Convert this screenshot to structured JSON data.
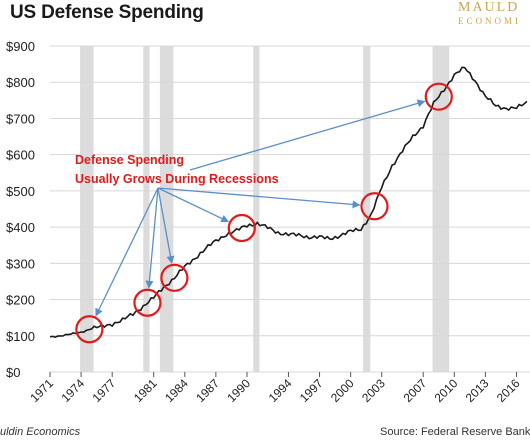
{
  "header": {
    "title": "US Defense Spending",
    "brand_line1": "MAULD",
    "brand_line2": "ECONOMI"
  },
  "footer": {
    "source_left": "uldin Economics",
    "source_right": "Source: Federal Reserve Bank of St"
  },
  "colors": {
    "line": "#1a1a1a",
    "recession": "#dcdcdc",
    "annotation": "#e21a1a",
    "arrow": "#5b8fc9",
    "grid": "#d8d8d8",
    "brand": "#c9a74d"
  },
  "chart_data": {
    "type": "line",
    "title": "US Defense Spending",
    "xlabel": "",
    "ylabel": "",
    "ylim": [
      0,
      900
    ],
    "xlim": [
      1971,
      2017.3
    ],
    "grid": true,
    "x_tick_labels": [
      "1971",
      "1974",
      "1977",
      "1981",
      "1984",
      "1987",
      "1990",
      "1994",
      "1997",
      "2000",
      "2003",
      "2007",
      "2010",
      "2013",
      "2016"
    ],
    "x_tick_values": [
      1971,
      1974,
      1977,
      1981,
      1984,
      1987,
      1990,
      1994,
      1997,
      2000,
      2003,
      2007,
      2010,
      2013,
      2016
    ],
    "y_tick_labels": [
      "$0",
      "$100",
      "$200",
      "$300",
      "$400",
      "$500",
      "$600",
      "$700",
      "$800",
      "$900"
    ],
    "y_tick_values": [
      0,
      100,
      200,
      300,
      400,
      500,
      600,
      700,
      800,
      900
    ],
    "recessions": [
      [
        1973.9,
        1975.2
      ],
      [
        1980.0,
        1980.6
      ],
      [
        1981.6,
        1982.9
      ],
      [
        1990.6,
        1991.2
      ],
      [
        2001.2,
        2001.9
      ],
      [
        2007.9,
        2009.5
      ]
    ],
    "series": [
      {
        "x": [
          1971,
          1972,
          1973,
          1974,
          1975,
          1976,
          1977,
          1978,
          1979,
          1980,
          1981,
          1982,
          1983,
          1984,
          1985,
          1986,
          1987,
          1988,
          1989,
          1990,
          1991,
          1992,
          1993,
          1994,
          1995,
          1996,
          1997,
          1998,
          1999,
          2000,
          2001,
          2002,
          2003,
          2004,
          2005,
          2006,
          2007,
          2008,
          2009,
          2010,
          2011,
          2012,
          2013,
          2014,
          2015,
          2016,
          2017
        ],
        "values": [
          97,
          100,
          104,
          110,
          120,
          125,
          133,
          143,
          160,
          182,
          205,
          235,
          260,
          290,
          315,
          340,
          362,
          380,
          390,
          405,
          410,
          398,
          385,
          380,
          377,
          373,
          372,
          368,
          377,
          388,
          395,
          435,
          510,
          570,
          610,
          650,
          680,
          740,
          780,
          820,
          840,
          805,
          760,
          735,
          728,
          728,
          745
        ]
      }
    ],
    "annotations": [
      {
        "text_line1": "Defense Spending",
        "text_line2": "Usually Grows During Recessions",
        "highlighted_years": [
          1974.8,
          1980.4,
          1983.0,
          1989.5,
          2002.3,
          2008.5
        ]
      }
    ]
  }
}
